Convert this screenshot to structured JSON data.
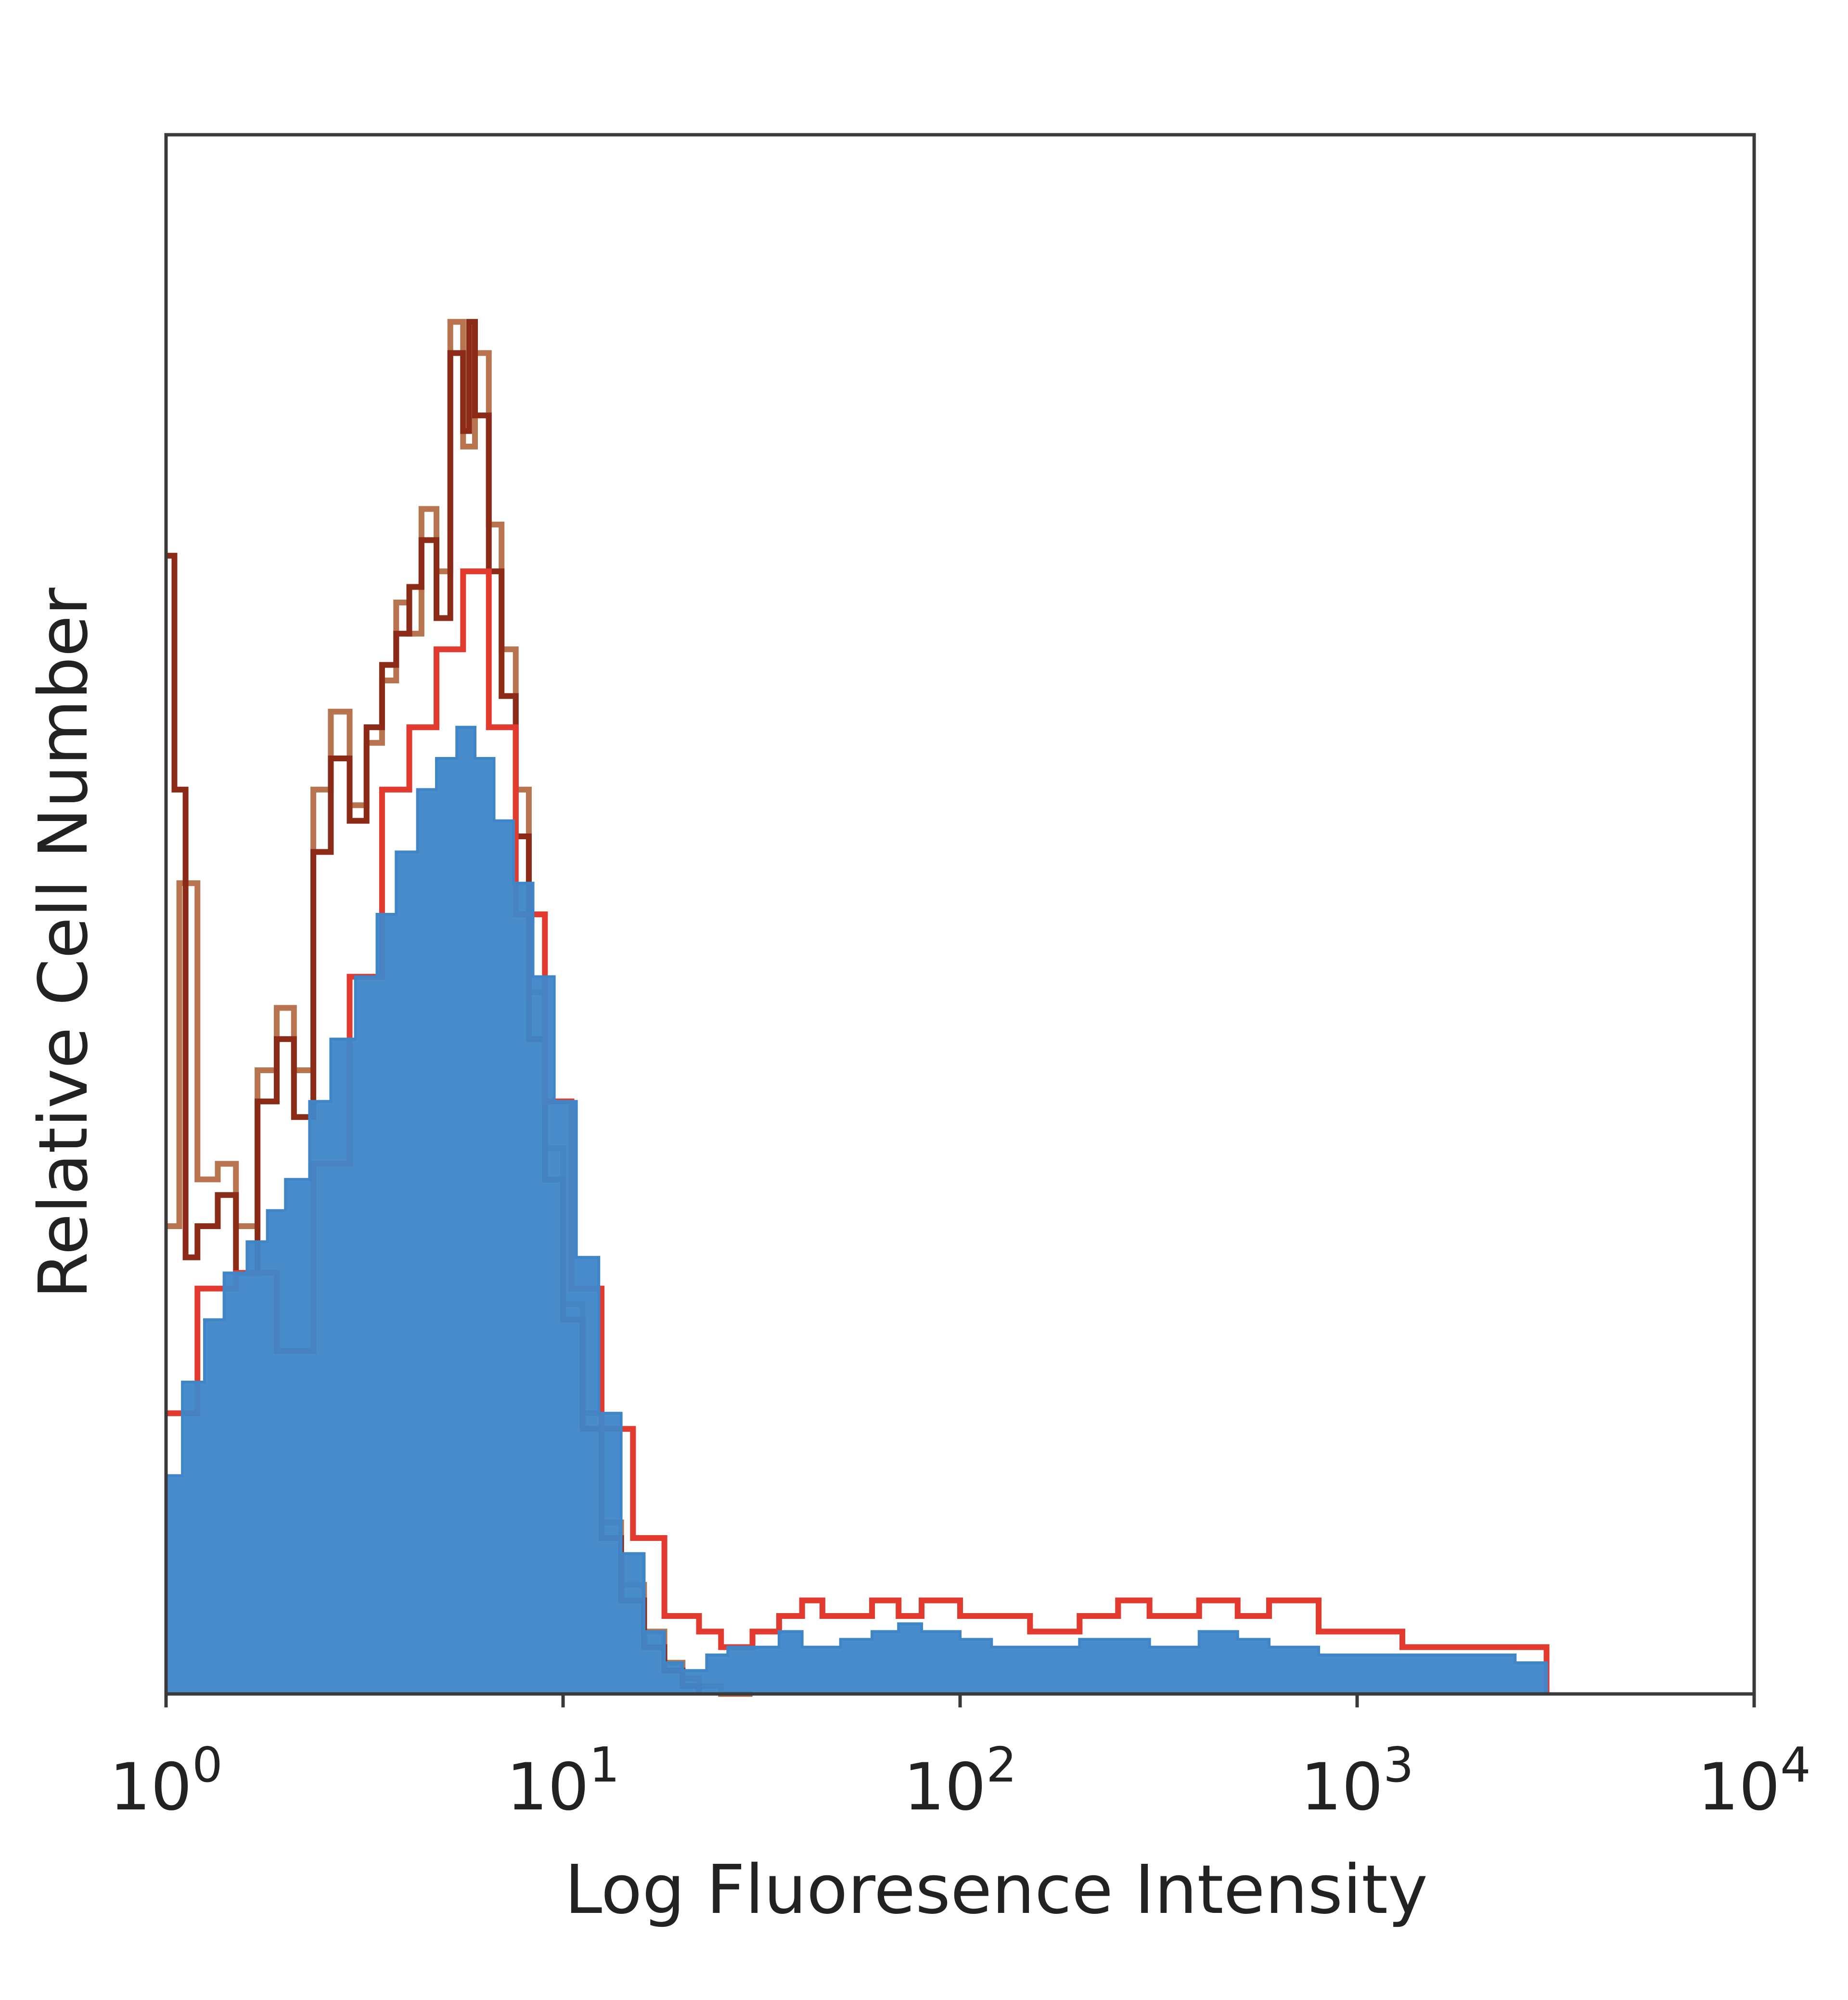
{
  "chart_data": {
    "type": "area",
    "title": "",
    "xlabel": "Log Fluoresence Intensity",
    "ylabel": "Relative Cell Number",
    "xscale": "log",
    "xlim": [
      1,
      10000
    ],
    "ylim": [
      0,
      100
    ],
    "grid": false,
    "legend": "none",
    "x_ticks": [
      {
        "value": 1,
        "base": "10",
        "exp": "0"
      },
      {
        "value": 10,
        "base": "10",
        "exp": "1"
      },
      {
        "value": 100,
        "base": "10",
        "exp": "2"
      },
      {
        "value": 1000,
        "base": "10",
        "exp": "3"
      },
      {
        "value": 10000,
        "base": "10",
        "exp": "4"
      }
    ],
    "series": [
      {
        "color": "#b8734f",
        "filled": false,
        "x": [
          1.0,
          1.08,
          1.2,
          1.35,
          1.5,
          1.7,
          1.9,
          2.1,
          2.35,
          2.6,
          2.9,
          3.2,
          3.5,
          3.8,
          4.1,
          4.4,
          4.8,
          5.2,
          5.6,
          6.0,
          6.5,
          7.0,
          7.6,
          8.2,
          9.0,
          10.0,
          11.2,
          12.5,
          14.0,
          16.0,
          18.0,
          20.0,
          22.0,
          25.0,
          30.0
        ],
        "y": [
          30,
          52,
          33,
          34,
          30,
          40,
          44,
          40,
          58,
          63,
          57,
          61,
          65,
          70,
          68,
          76,
          72,
          88,
          80,
          86,
          75,
          67,
          58,
          45,
          35,
          25,
          18,
          11,
          7,
          4,
          2,
          1,
          0.5,
          0,
          0
        ]
      },
      {
        "color": "#8b2a16",
        "filled": false,
        "x": [
          1.0,
          1.05,
          1.12,
          1.2,
          1.35,
          1.5,
          1.7,
          1.9,
          2.1,
          2.35,
          2.6,
          2.9,
          3.2,
          3.5,
          3.8,
          4.1,
          4.4,
          4.8,
          5.2,
          5.6,
          5.8,
          6.0,
          6.5,
          7.0,
          7.6,
          8.2,
          9.0,
          10.0,
          11.2,
          12.5,
          14.0,
          16.0,
          18.0,
          20.0,
          22.0
        ],
        "y": [
          73,
          58,
          28,
          30,
          32,
          27,
          38,
          42,
          37,
          54,
          60,
          56,
          62,
          66,
          68,
          71,
          74,
          69,
          86,
          81,
          88,
          82,
          72,
          64,
          55,
          42,
          33,
          24,
          17,
          10,
          6,
          3,
          1.5,
          0.5,
          0
        ]
      },
      {
        "color": "#e23a2e",
        "filled": false,
        "x": [
          1.0,
          1.2,
          1.5,
          1.9,
          2.35,
          2.9,
          3.5,
          4.1,
          4.8,
          5.6,
          6.5,
          7.6,
          9.0,
          10.5,
          12.5,
          15.0,
          18.0,
          22.0,
          25.0,
          30.0,
          35.0,
          40.0,
          45.0,
          50.0,
          60.0,
          70.0,
          80.0,
          100.0,
          120.0,
          150.0,
          200.0,
          250.0,
          300.0,
          400.0,
          500.0,
          600.0,
          800.0,
          1000.0,
          1300.0,
          1600.0,
          2000.0,
          2500.0,
          3000.0
        ],
        "y": [
          18,
          26,
          27,
          22,
          34,
          46,
          58,
          62,
          67,
          72,
          62,
          50,
          38,
          26,
          17,
          10,
          5,
          4,
          3,
          4,
          5,
          6,
          5,
          5,
          6,
          5,
          6,
          5,
          5,
          4,
          5,
          6,
          5,
          6,
          5,
          6,
          4,
          4,
          3,
          3,
          3,
          3,
          0
        ]
      },
      {
        "color": "#3f86c9",
        "filled": true,
        "x": [
          1.0,
          1.1,
          1.25,
          1.4,
          1.6,
          1.8,
          2.0,
          2.3,
          2.6,
          3.0,
          3.4,
          3.8,
          4.3,
          4.8,
          5.4,
          6.0,
          6.7,
          7.5,
          8.4,
          9.5,
          10.8,
          12.3,
          14.0,
          16.0,
          18.0,
          20.0,
          23.0,
          26.0,
          30.0,
          35.0,
          40.0,
          50.0,
          60.0,
          70.0,
          80.0,
          100.0,
          120.0,
          150.0,
          200.0,
          250.0,
          300.0,
          400.0,
          500.0,
          600.0,
          800.0,
          1000.0,
          1300.0,
          1600.0,
          2000.0,
          2500.0,
          3000.0
        ],
        "y": [
          14,
          20,
          24,
          27,
          29,
          31,
          33,
          38,
          42,
          46,
          50,
          54,
          58,
          60,
          62,
          60,
          56,
          52,
          46,
          38,
          28,
          18,
          9,
          4,
          2,
          1.5,
          2.5,
          3,
          3,
          4,
          3,
          3.5,
          4,
          4.5,
          4,
          3.5,
          3,
          3,
          3.5,
          3.5,
          3,
          4,
          3.5,
          3,
          2.5,
          2.5,
          2.5,
          2.5,
          2.5,
          2,
          0
        ]
      }
    ]
  }
}
